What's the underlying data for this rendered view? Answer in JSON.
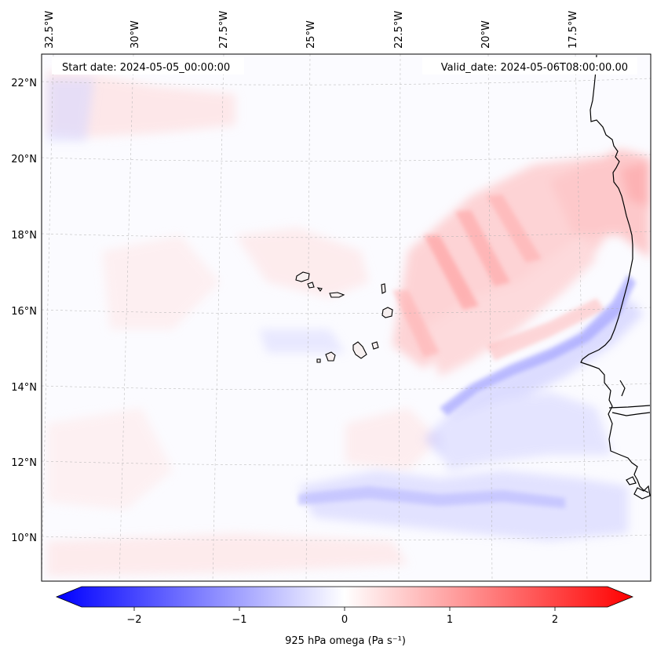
{
  "header": {
    "start_date": "Start date: 2024-05-05_00:00:00",
    "valid_date": "Valid_date: 2024-05-06T08:00:00.00"
  },
  "axes": {
    "lon_labels": [
      "32.5°W",
      "30°W",
      "27.5°W",
      "25°W",
      "22.5°W",
      "20°W",
      "17.5°W"
    ],
    "lat_labels": [
      "22°N",
      "20°N",
      "18°N",
      "16°N",
      "14°N",
      "12°N",
      "10°N"
    ]
  },
  "colorbar": {
    "label": "925 hPa omega (Pa s⁻¹)",
    "tick_labels": [
      "−2",
      "−1",
      "0",
      "1",
      "2"
    ],
    "tick_values": [
      -2,
      -1,
      0,
      1,
      2
    ],
    "range": [
      -2.5,
      2.5
    ],
    "cmap": "bwr",
    "colors": {
      "low": "#0000ff",
      "mid": "#ffffff",
      "high": "#ff0000"
    }
  },
  "map": {
    "projection": "lambert",
    "gridlines": true,
    "coastline_color": "#000000"
  }
}
